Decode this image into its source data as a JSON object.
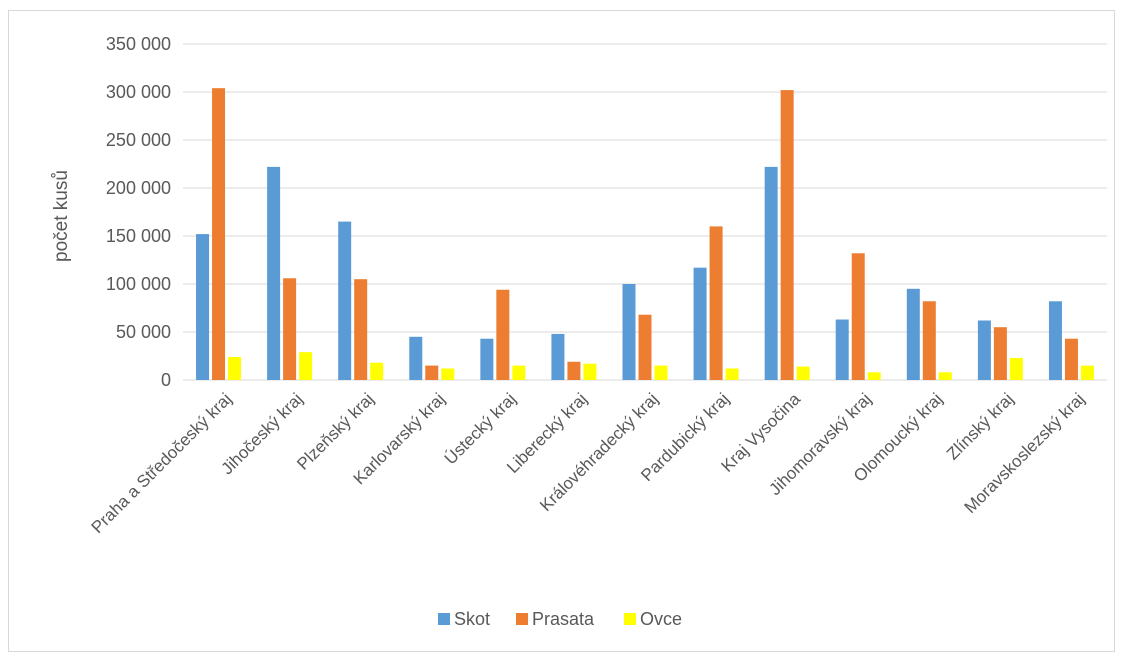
{
  "chart_data": {
    "type": "bar",
    "title": "",
    "xlabel": "",
    "ylabel": "počet kusů",
    "ylim": [
      0,
      350000
    ],
    "ytick_step": 50000,
    "ytick_labels": [
      "0",
      "50 000",
      "100 000",
      "150 000",
      "200 000",
      "250 000",
      "300 000",
      "350 000"
    ],
    "grid": true,
    "legend_position": "bottom",
    "categories": [
      "Praha a Středočeský kraj",
      "Jihočeský kraj",
      "Plzeňský kraj",
      "Karlovarský kraj",
      "Ústecký kraj",
      "Liberecký kraj",
      "Královéhradecký kraj",
      "Pardubický kraj",
      "Kraj Vysočina",
      "Jihomoravský kraj",
      "Olomoucký kraj",
      "Zlínský kraj",
      "Moravskoslezský kraj"
    ],
    "series": [
      {
        "name": "Skot",
        "color": "#5b9bd5",
        "values": [
          152000,
          222000,
          165000,
          45000,
          43000,
          48000,
          100000,
          117000,
          222000,
          63000,
          95000,
          62000,
          82000
        ]
      },
      {
        "name": "Prasata",
        "color": "#ed7d31",
        "values": [
          304000,
          106000,
          105000,
          15000,
          94000,
          19000,
          68000,
          160000,
          302000,
          132000,
          82000,
          55000,
          43000
        ]
      },
      {
        "name": "Ovce",
        "color": "#ffff00",
        "values": [
          24000,
          29000,
          18000,
          12000,
          15000,
          17000,
          15000,
          12000,
          14000,
          8000,
          8000,
          23000,
          15000
        ]
      }
    ],
    "gridline_color": "#d9d9d9"
  }
}
